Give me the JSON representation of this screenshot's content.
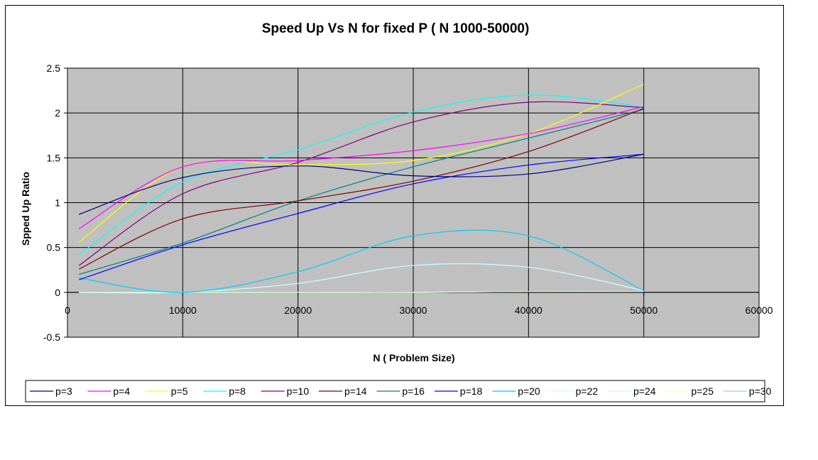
{
  "chart_data": {
    "type": "line",
    "title": "Speed Up Vs N for fixed P ( N 1000-50000)",
    "xlabel": "N ( Problem  Size)",
    "ylabel": "Spped Up Ratio",
    "xlim": [
      0,
      60000
    ],
    "ylim": [
      -0.5,
      2.5
    ],
    "x_ticks": [
      "0",
      "10000",
      "20000",
      "30000",
      "40000",
      "50000",
      "60000"
    ],
    "y_ticks": [
      "-0.5",
      "0",
      "0.5",
      "1",
      "1.5",
      "2",
      "2.5"
    ],
    "grid": true,
    "plot_background": "#c0c0c0",
    "legend_position": "bottom",
    "x": [
      1000,
      10000,
      20000,
      30000,
      40000,
      50000
    ],
    "series": [
      {
        "name": "p=3",
        "color": "#000080",
        "values": [
          0.87,
          1.28,
          1.41,
          1.3,
          1.32,
          1.54
        ]
      },
      {
        "name": "p=4",
        "color": "#ff00ff",
        "values": [
          0.71,
          1.4,
          1.47,
          1.58,
          1.77,
          2.07
        ]
      },
      {
        "name": "p=5",
        "color": "#ffff00",
        "values": [
          0.56,
          1.4,
          1.42,
          1.47,
          1.77,
          2.32
        ]
      },
      {
        "name": "p=8",
        "color": "#00ffff",
        "values": [
          0.42,
          1.23,
          1.59,
          2.01,
          2.2,
          2.07
        ]
      },
      {
        "name": "p=10",
        "color": "#800080",
        "values": [
          0.3,
          1.1,
          1.45,
          1.9,
          2.12,
          2.06
        ]
      },
      {
        "name": "p=14",
        "color": "#800000",
        "values": [
          0.26,
          0.82,
          1.02,
          1.24,
          1.57,
          2.05
        ]
      },
      {
        "name": "p=16",
        "color": "#008080",
        "values": [
          0.2,
          0.55,
          1.02,
          1.4,
          1.72,
          2.04
        ]
      },
      {
        "name": "p=18",
        "color": "#0000ff",
        "values": [
          0.14,
          0.53,
          0.88,
          1.21,
          1.42,
          1.54
        ]
      },
      {
        "name": "p=20",
        "color": "#00ccff",
        "values": [
          0.16,
          0.0,
          0.23,
          0.63,
          0.63,
          0.02
        ]
      },
      {
        "name": "p=22",
        "color": "#ccffff",
        "values": [
          0.0,
          0.0,
          0.1,
          0.3,
          0.28,
          0.02
        ]
      },
      {
        "name": "p=24",
        "color": "#ccffcc",
        "values": [
          0.0,
          0.0,
          0.0,
          0.0,
          0.01,
          0.01
        ]
      },
      {
        "name": "p=25",
        "color": "#ffff99",
        "values": [
          0.0,
          0.0,
          0.0,
          0.0,
          0.01,
          0.01
        ]
      },
      {
        "name": "p=30",
        "color": "#99ccff",
        "values": [
          0.0,
          0.0,
          0.0,
          0.0,
          0.01,
          0.01
        ]
      }
    ]
  }
}
